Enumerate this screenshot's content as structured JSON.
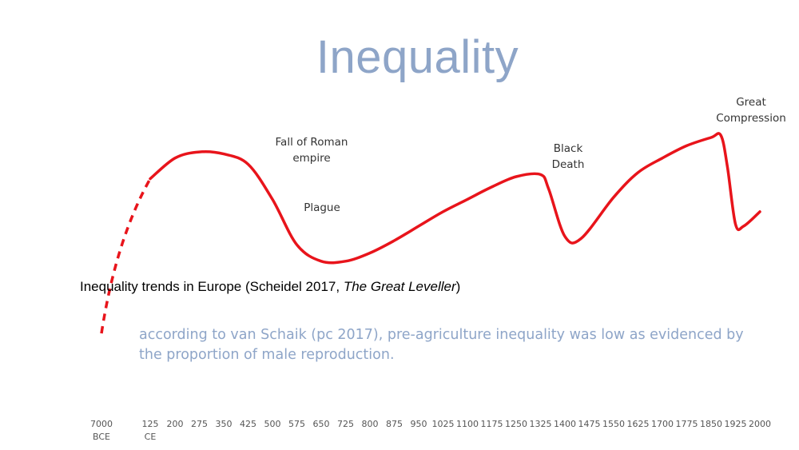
{
  "slide": {
    "title": "Inequality",
    "caption_text": "Inequality trends in Europe (Scheidel 2017, ",
    "caption_italic": "The Great Leveller",
    "caption_end": ")",
    "note": "according to van Schaik (pc 2017), pre-agriculture inequality was low as evidenced by the proportion of male reproduction."
  },
  "chart_data": {
    "type": "line",
    "title": "",
    "xlabel": "",
    "ylabel": "",
    "x_ticks": [
      "7000 BCE",
      "125 CE",
      "200",
      "275",
      "350",
      "425",
      "500",
      "575",
      "650",
      "725",
      "800",
      "875",
      "950",
      "1025",
      "1100",
      "1175",
      "1250",
      "1325",
      "1400",
      "1475",
      "1550",
      "1625",
      "1700",
      "1775",
      "1850",
      "1925",
      "2000"
    ],
    "y_scale": "relative inequality (unlabelled)",
    "series": [
      {
        "style": "dashed",
        "color": "#e8141b",
        "points": [
          [
            "7000 BCE",
            0.05
          ],
          [
            "125 CE",
            0.8
          ]
        ]
      },
      {
        "style": "solid",
        "color": "#e8141b",
        "points": [
          [
            "125 CE",
            0.8
          ],
          [
            "200",
            0.9
          ],
          [
            "275",
            0.93
          ],
          [
            "350",
            0.92
          ],
          [
            "425",
            0.87
          ],
          [
            "500",
            0.7
          ],
          [
            "575",
            0.48
          ],
          [
            "650",
            0.4
          ],
          [
            "725",
            0.4
          ],
          [
            "800",
            0.44
          ],
          [
            "875",
            0.5
          ],
          [
            "950",
            0.57
          ],
          [
            "1025",
            0.64
          ],
          [
            "1100",
            0.7
          ],
          [
            "1175",
            0.76
          ],
          [
            "1250",
            0.81
          ],
          [
            "1325",
            0.82
          ],
          [
            "1350",
            0.75
          ],
          [
            "1400",
            0.52
          ],
          [
            "1450",
            0.51
          ],
          [
            "1550",
            0.71
          ],
          [
            "1625",
            0.83
          ],
          [
            "1700",
            0.9
          ],
          [
            "1775",
            0.96
          ],
          [
            "1850",
            1.0
          ],
          [
            "1880",
            1.01
          ],
          [
            "1900",
            0.86
          ],
          [
            "1925",
            0.58
          ],
          [
            "1950",
            0.57
          ],
          [
            "2000",
            0.64
          ]
        ]
      }
    ],
    "annotations": [
      {
        "label": "Fall of Roman empire",
        "near_x": "500"
      },
      {
        "label": "Plague",
        "near_x": "600"
      },
      {
        "label": "Black Death",
        "near_x": "1400"
      },
      {
        "label": "Great Compression",
        "near_x": "1925"
      }
    ],
    "grid": false,
    "legend": "none"
  }
}
